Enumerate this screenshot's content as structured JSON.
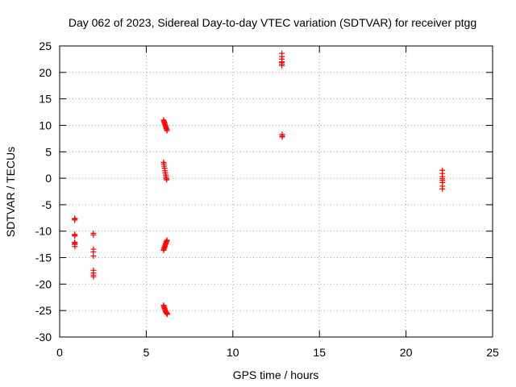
{
  "chart_data": {
    "type": "scatter",
    "title": "Day 062 of 2023, Sidereal Day-to-day VTEC variation (SDTVAR) for receiver ptgg",
    "xlabel": "GPS time / hours",
    "ylabel": "SDTVAR / TECUs",
    "xlim": [
      0,
      25
    ],
    "ylim": [
      -30,
      25
    ],
    "xticks": [
      0,
      5,
      10,
      15,
      20,
      25
    ],
    "yticks": [
      25,
      20,
      15,
      10,
      5,
      0,
      -5,
      -10,
      -15,
      -20,
      -25,
      -30
    ],
    "grid": true,
    "marker": "plus",
    "color": "#ff0000",
    "series": [
      {
        "name": "SDTVAR",
        "x": [
          0.87,
          0.87,
          0.87,
          0.87,
          0.87,
          0.87,
          0.88,
          0.88,
          0.88,
          0.88,
          1.95,
          1.95,
          1.95,
          1.95,
          1.95,
          1.95,
          1.95,
          1.95,
          1.95,
          6.0,
          6.02,
          6.04,
          6.06,
          6.08,
          6.1,
          6.12,
          6.14,
          6.16,
          6.18,
          6.2,
          6.0,
          6.02,
          6.04,
          6.06,
          6.08,
          6.1,
          6.12,
          6.14,
          6.16,
          6.18,
          6.0,
          6.02,
          6.04,
          6.06,
          6.08,
          6.1,
          6.12,
          6.14,
          6.16,
          6.18,
          6.2,
          6.0,
          6.02,
          6.04,
          6.06,
          6.08,
          6.1,
          6.12,
          6.14,
          6.16,
          6.18,
          6.2,
          6.22,
          12.83,
          12.83,
          12.83,
          12.83,
          12.83,
          12.83,
          12.83,
          12.85,
          12.85,
          12.85,
          22.1,
          22.1,
          22.1,
          22.1,
          22.1,
          22.1,
          22.1,
          22.1
        ],
        "y": [
          -7.6,
          -7.9,
          -10.6,
          -10.9,
          -12.1,
          -12.5,
          -12.9,
          -7.7,
          -10.7,
          -12.3,
          -10.4,
          -10.7,
          -13.4,
          -13.9,
          -14.7,
          -17.4,
          -17.9,
          -18.3,
          -18.6,
          11.0,
          10.8,
          10.6,
          10.4,
          10.2,
          10.0,
          9.8,
          9.6,
          9.4,
          9.2,
          9.0,
          3.0,
          2.7,
          2.3,
          1.9,
          1.4,
          1.0,
          0.6,
          0.2,
          -0.1,
          -0.3,
          -13.6,
          -13.4,
          -13.2,
          -13.0,
          -12.8,
          -12.6,
          -12.4,
          -12.2,
          -12.0,
          -11.9,
          -11.7,
          -24.0,
          -24.2,
          -24.4,
          -24.6,
          -24.8,
          -25.0,
          -25.2,
          -25.3,
          -25.4,
          -25.5,
          -25.6,
          -25.7,
          23.6,
          23.0,
          22.5,
          22.0,
          21.6,
          21.3,
          21.9,
          8.3,
          8.0,
          7.8,
          1.5,
          0.9,
          0.3,
          -0.1,
          -0.4,
          -0.8,
          -1.5,
          -2.0
        ]
      }
    ]
  }
}
